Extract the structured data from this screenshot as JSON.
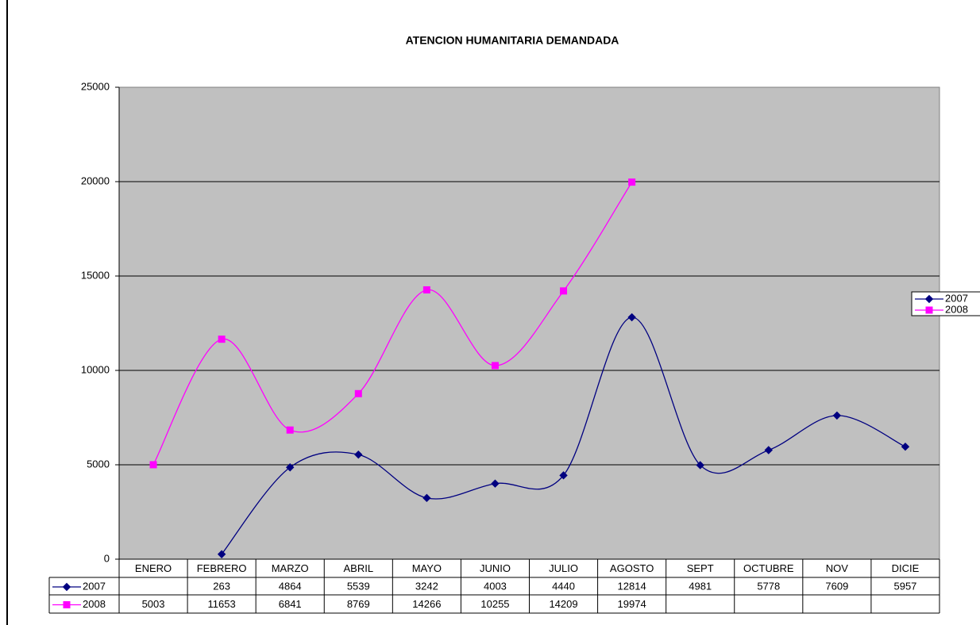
{
  "chart_data": {
    "type": "line",
    "title": "ATENCION HUMANITARIA DEMANDADA",
    "categories": [
      "ENERO",
      "FEBRERO",
      "MARZO",
      "ABRIL",
      "MAYO",
      "JUNIO",
      "JULIO",
      "AGOSTO",
      "SEPT",
      "OCTUBRE",
      "NOV",
      "DICIE"
    ],
    "series": [
      {
        "name": "2007",
        "color": "#000080",
        "marker": "diamond",
        "values": [
          null,
          263,
          4864,
          5539,
          3242,
          4003,
          4440,
          12814,
          4981,
          5778,
          7609,
          5957
        ]
      },
      {
        "name": "2008",
        "color": "#ff00ff",
        "marker": "square",
        "values": [
          5003,
          11653,
          6841,
          8769,
          14266,
          10255,
          14209,
          19974,
          null,
          null,
          null,
          null
        ]
      }
    ],
    "ylim": [
      0,
      25000
    ],
    "yticks": [
      0,
      5000,
      10000,
      15000,
      20000,
      25000
    ],
    "grid": true,
    "smooth": true,
    "legend": "right",
    "data_table": true
  }
}
